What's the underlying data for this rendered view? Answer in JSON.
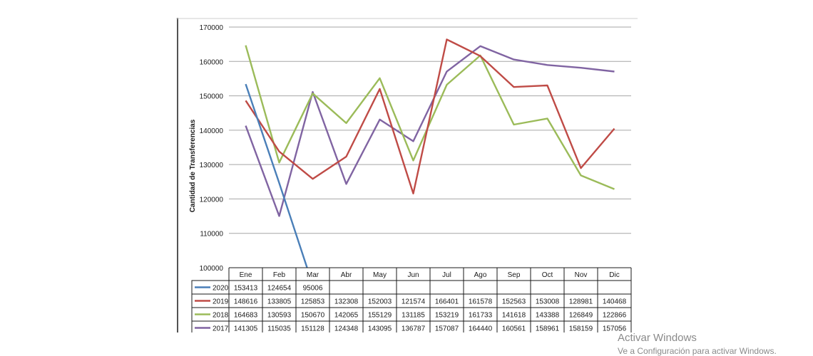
{
  "chart_data": {
    "type": "line",
    "title": "",
    "xlabel": "",
    "ylabel": "Cantidad de Transferencias",
    "ylim": [
      100000,
      170000
    ],
    "y_ticks": [
      "100000",
      "110000",
      "120000",
      "130000",
      "140000",
      "150000",
      "160000",
      "170000"
    ],
    "categories": [
      "Ene",
      "Feb",
      "Mar",
      "Abr",
      "May",
      "Jun",
      "Jul",
      "Ago",
      "Sep",
      "Oct",
      "Nov",
      "Dic"
    ],
    "grid": true,
    "legend": "data-table-left",
    "series": [
      {
        "name": "2020",
        "color": "#4a7fb8",
        "values": [
          153413,
          124654,
          95006,
          null,
          null,
          null,
          null,
          null,
          null,
          null,
          null,
          null
        ]
      },
      {
        "name": "2019",
        "color": "#bf4b46",
        "values": [
          148616,
          133805,
          125853,
          132308,
          152003,
          121574,
          166401,
          161578,
          152563,
          153008,
          128981,
          140468
        ]
      },
      {
        "name": "2018",
        "color": "#9bbb59",
        "values": [
          164683,
          130593,
          150670,
          142065,
          155129,
          131185,
          153219,
          161733,
          141618,
          143388,
          126849,
          122866
        ]
      },
      {
        "name": "2017",
        "color": "#8064a2",
        "values": [
          141305,
          115035,
          151128,
          124348,
          143095,
          136787,
          157087,
          164440,
          160561,
          158961,
          158159,
          157056
        ]
      }
    ]
  },
  "watermark": {
    "title": "Activar Windows",
    "subtitle": "Ve a Configuración para activar Windows."
  }
}
